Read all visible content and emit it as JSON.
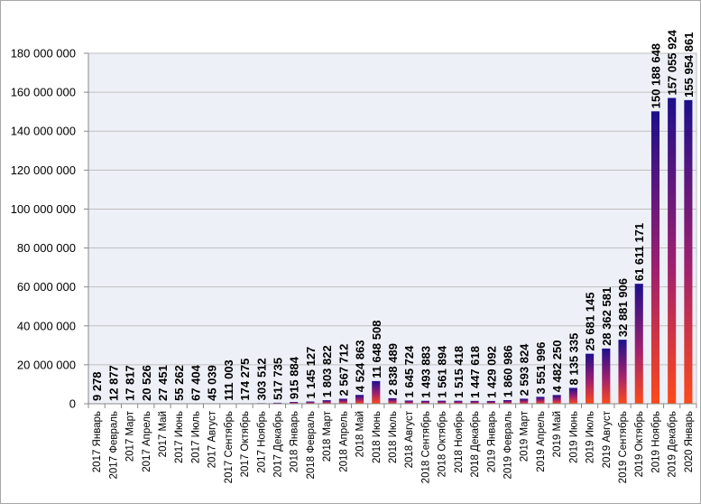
{
  "chart_data": {
    "type": "bar",
    "title": "",
    "xlabel": "",
    "ylabel": "",
    "ylim": [
      0,
      180000000
    ],
    "yticks": [
      0,
      20000000,
      40000000,
      60000000,
      80000000,
      100000000,
      120000000,
      140000000,
      160000000,
      180000000
    ],
    "ytick_labels": [
      "0",
      "20 000 000",
      "40 000 000",
      "60 000 000",
      "80 000 000",
      "100 000 000",
      "120 000 000",
      "140 000 000",
      "160 000 000",
      "180 000 000"
    ],
    "grid": "horizontal",
    "plot_background": "#eef0f7",
    "bar_gradient": {
      "top": "#1c0f8c",
      "middle": "#a0206e",
      "bottom": "#ff4a1a"
    },
    "categories": [
      "2017 Январь",
      "2017 Февраль",
      "2017 Март",
      "2017 Апрель",
      "2017 Май",
      "2017 Июнь",
      "2017 Июль",
      "2017 Август",
      "2017 Сентябрь",
      "2017 Октябрь",
      "2017 Ноябрь",
      "2017 Декабрь",
      "2018 Январь",
      "2018 Февраль",
      "2018 Март",
      "2018 Апрель",
      "2018 Май",
      "2018 Июнь",
      "2018 Июль",
      "2018 Август",
      "2018 Сентябрь",
      "2018 Октябрь",
      "2018 Ноябрь",
      "2018 Декабрь",
      "2019 Январь",
      "2019 Февраль",
      "2019 Март",
      "2019 Апрель",
      "2019 Май",
      "2019 Июнь",
      "2019 Июль",
      "2019 Август",
      "2019 Сентябрь",
      "2019 Октябрь",
      "2019 Ноябрь",
      "2019 Декабрь",
      "2020 Январь"
    ],
    "values": [
      9278,
      12877,
      17817,
      20526,
      27451,
      55262,
      67404,
      45039,
      111003,
      174275,
      303512,
      517735,
      915884,
      1145127,
      1803822,
      2567712,
      4524863,
      11648508,
      2838489,
      1645724,
      1493883,
      1561894,
      1515418,
      1447618,
      1429092,
      1860986,
      2593824,
      3551996,
      4482250,
      8135335,
      25681145,
      28362581,
      32881906,
      61611171,
      150188648,
      157055924,
      155954861
    ],
    "data_labels": [
      "9 278",
      "12 877",
      "17 817",
      "20 526",
      "27 451",
      "55 262",
      "67 404",
      "45 039",
      "111 003",
      "174 275",
      "303 512",
      "517 735",
      "915 884",
      "1 145 127",
      "1 803 822",
      "2 567 712",
      "4 524 863",
      "11 648 508",
      "2 838 489",
      "1 645 724",
      "1 493 883",
      "1 561 894",
      "1 515 418",
      "1 447 618",
      "1 429 092",
      "1 860 986",
      "2 593 824",
      "3 551 996",
      "4 482 250",
      "8 135 335",
      "25 681 145",
      "28 362 581",
      "32 881 906",
      "61 611 171",
      "150 188 648",
      "157 055 924",
      "155 954 861"
    ]
  }
}
